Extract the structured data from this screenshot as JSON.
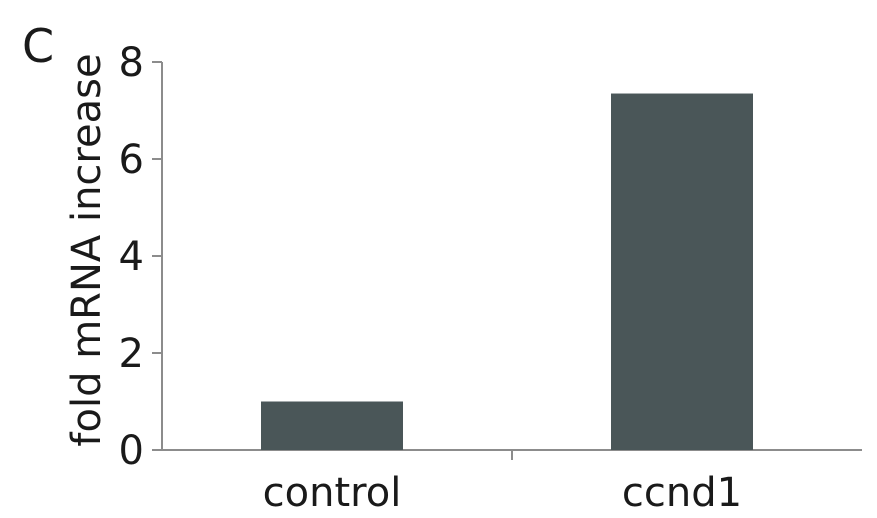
{
  "panel_label": "C",
  "chart_data": {
    "type": "bar",
    "categories": [
      "control",
      "ccnd1"
    ],
    "values": [
      1.0,
      7.35
    ],
    "title": "",
    "xlabel": "",
    "ylabel": "fold mRNA increase",
    "ylim": [
      0,
      8
    ],
    "yticks": [
      0,
      2,
      4,
      6,
      8
    ],
    "grid": false,
    "legend": "none",
    "colors": {
      "bar": "#4a5658",
      "axis": "#8c8c8c",
      "text": "#1a1a1a"
    }
  }
}
